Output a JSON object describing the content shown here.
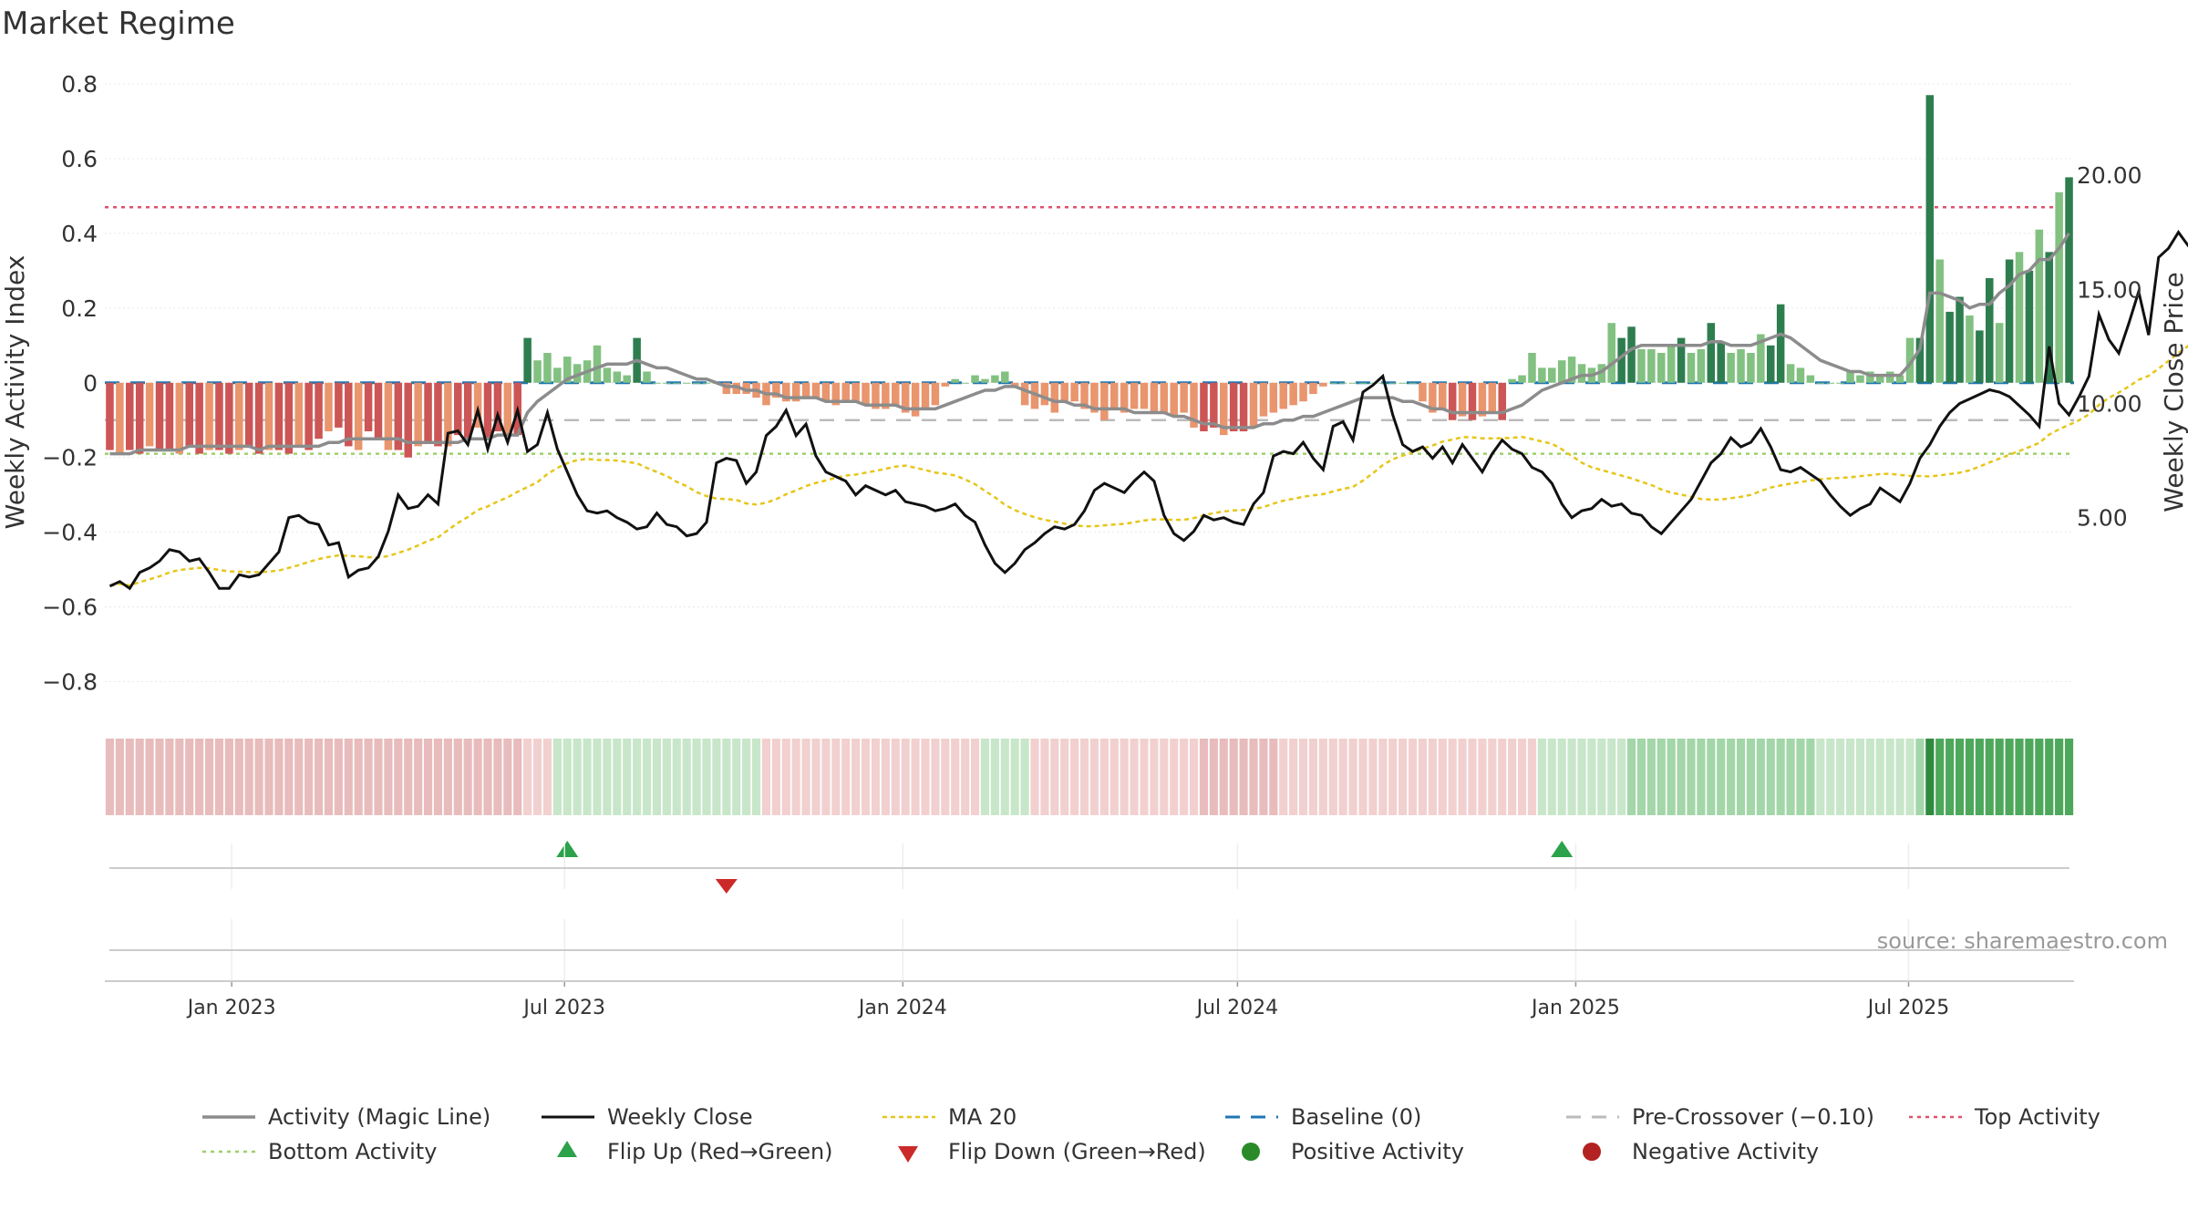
{
  "title": "Market Regime",
  "source": "source: sharemaestro.com",
  "colors": {
    "activity_line": "#8c8c8c",
    "weekly_close": "#111111",
    "ma20": "#e6c619",
    "baseline": "#1f77b4",
    "pre_crossover": "#bbbbbb",
    "top_activity": "#e0506a",
    "bottom_activity": "#9ed06a",
    "pos_dark": "#2e7d4f",
    "pos_light": "#82c181",
    "neg_dark": "#cc5555",
    "neg_light": "#e9956e",
    "flip_up": "#2ca24a",
    "flip_down": "#cc2a2a",
    "pos_dot": "#2a8a2a",
    "neg_dot": "#b22222"
  },
  "chart_data": {
    "type": "bar",
    "title": "Market Regime",
    "ylabel": "Weekly Activity Index",
    "y2label": "Weekly Close Price",
    "ylim": [
      -0.85,
      0.8
    ],
    "yticks": [
      -0.8,
      -0.6,
      -0.4,
      -0.2,
      0,
      0.2,
      0.4,
      0.6,
      0.8
    ],
    "ytick_labels": [
      "−0.8",
      "−0.6",
      "−0.4",
      "−0.2",
      "0",
      "0.2",
      "0.4",
      "0.6",
      "0.8"
    ],
    "y2lim": [
      -3.0,
      24.0
    ],
    "y2ticks": [
      5,
      10,
      15,
      20
    ],
    "y2tick_labels": [
      "5.00",
      "10.00",
      "15.00",
      "20.00"
    ],
    "x_start": "2022-10-24",
    "x_end": "2025-09-29",
    "xticks": [
      "2023-01-01",
      "2023-07-01",
      "2024-01-01",
      "2024-07-01",
      "2025-01-01",
      "2025-07-01"
    ],
    "xtick_labels": [
      "Jan 2023",
      "Jul 2023",
      "Jan 2024",
      "Jul 2024",
      "Jan 2025",
      "Jul 2025"
    ],
    "top_activity": 0.47,
    "bottom_activity": -0.19,
    "pre_crossover": -0.1,
    "baseline": 0,
    "grid": true,
    "legend_position": "bottom",
    "legend": [
      "Activity (Magic Line)",
      "Weekly Close",
      "MA 20",
      "Baseline (0)",
      "Pre-Crossover (−0.10)",
      "Top Activity",
      "Bottom Activity",
      "Flip Up (Red→Green)",
      "Flip Down (Green→Red)",
      "Positive Activity",
      "Negative Activity"
    ],
    "activity_bars": [
      -0.18,
      -0.19,
      -0.18,
      -0.19,
      -0.17,
      -0.18,
      -0.18,
      -0.19,
      -0.17,
      -0.19,
      -0.18,
      -0.18,
      -0.19,
      -0.18,
      -0.17,
      -0.19,
      -0.18,
      -0.18,
      -0.19,
      -0.17,
      -0.18,
      -0.15,
      -0.13,
      -0.12,
      -0.17,
      -0.18,
      -0.13,
      -0.15,
      -0.18,
      -0.18,
      -0.2,
      -0.17,
      -0.16,
      -0.17,
      -0.17,
      -0.14,
      -0.15,
      -0.12,
      -0.15,
      -0.13,
      -0.14,
      -0.14,
      0.12,
      0.06,
      0.08,
      0.04,
      0.07,
      0.05,
      0.06,
      0.1,
      0.04,
      0.03,
      0.02,
      0.12,
      0.03,
      0.0,
      0.0,
      0.0,
      0.0,
      0.0,
      0.0,
      0.0,
      -0.03,
      -0.03,
      -0.03,
      -0.04,
      -0.06,
      -0.04,
      -0.05,
      -0.05,
      -0.04,
      -0.04,
      -0.05,
      -0.06,
      -0.05,
      -0.05,
      -0.06,
      -0.07,
      -0.07,
      -0.06,
      -0.08,
      -0.09,
      -0.07,
      -0.06,
      -0.01,
      0.01,
      0.0,
      0.02,
      0.01,
      0.02,
      0.03,
      -0.01,
      -0.06,
      -0.07,
      -0.06,
      -0.08,
      -0.05,
      -0.05,
      -0.07,
      -0.08,
      -0.1,
      -0.07,
      -0.08,
      -0.07,
      -0.07,
      -0.08,
      -0.08,
      -0.09,
      -0.08,
      -0.12,
      -0.13,
      -0.12,
      -0.14,
      -0.13,
      -0.13,
      -0.12,
      -0.09,
      -0.08,
      -0.07,
      -0.06,
      -0.05,
      -0.03,
      -0.01,
      0.0,
      0.0,
      0.0,
      0.0,
      0.0,
      0.0,
      0.0,
      0.0,
      0.0,
      -0.05,
      -0.08,
      -0.07,
      -0.1,
      -0.09,
      -0.1,
      -0.09,
      -0.08,
      -0.1,
      0.01,
      0.02,
      0.08,
      0.04,
      0.04,
      0.06,
      0.07,
      0.05,
      0.04,
      0.05,
      0.16,
      0.12,
      0.15,
      0.09,
      0.09,
      0.08,
      0.1,
      0.12,
      0.08,
      0.09,
      0.16,
      0.11,
      0.08,
      0.09,
      0.08,
      0.13,
      0.1,
      0.21,
      0.05,
      0.04,
      0.02,
      0.0,
      0.0,
      0.0,
      0.03,
      0.02,
      0.03,
      0.02,
      0.03,
      0.02,
      0.12,
      0.12,
      0.77,
      0.33,
      0.19,
      0.23,
      0.18,
      0.14,
      0.28,
      0.16,
      0.33,
      0.35,
      0.3,
      0.41,
      0.35,
      0.51,
      0.55
    ],
    "activity_line": [
      -0.19,
      -0.19,
      -0.19,
      -0.18,
      -0.18,
      -0.18,
      -0.18,
      -0.18,
      -0.17,
      -0.17,
      -0.17,
      -0.17,
      -0.17,
      -0.17,
      -0.17,
      -0.18,
      -0.17,
      -0.17,
      -0.17,
      -0.17,
      -0.17,
      -0.17,
      -0.16,
      -0.16,
      -0.15,
      -0.15,
      -0.15,
      -0.15,
      -0.15,
      -0.15,
      -0.16,
      -0.16,
      -0.16,
      -0.16,
      -0.16,
      -0.16,
      -0.15,
      -0.15,
      -0.15,
      -0.14,
      -0.14,
      -0.14,
      -0.08,
      -0.05,
      -0.03,
      -0.01,
      0.01,
      0.02,
      0.03,
      0.04,
      0.05,
      0.05,
      0.05,
      0.06,
      0.05,
      0.04,
      0.04,
      0.03,
      0.02,
      0.01,
      0.01,
      0.0,
      -0.01,
      -0.01,
      -0.02,
      -0.02,
      -0.03,
      -0.03,
      -0.04,
      -0.04,
      -0.04,
      -0.04,
      -0.05,
      -0.05,
      -0.05,
      -0.05,
      -0.06,
      -0.06,
      -0.06,
      -0.06,
      -0.07,
      -0.07,
      -0.07,
      -0.07,
      -0.06,
      -0.05,
      -0.04,
      -0.03,
      -0.02,
      -0.02,
      -0.01,
      -0.01,
      -0.02,
      -0.03,
      -0.04,
      -0.05,
      -0.05,
      -0.06,
      -0.06,
      -0.07,
      -0.07,
      -0.07,
      -0.07,
      -0.08,
      -0.08,
      -0.08,
      -0.08,
      -0.09,
      -0.09,
      -0.1,
      -0.11,
      -0.11,
      -0.12,
      -0.12,
      -0.12,
      -0.12,
      -0.11,
      -0.11,
      -0.1,
      -0.1,
      -0.09,
      -0.09,
      -0.08,
      -0.07,
      -0.06,
      -0.05,
      -0.04,
      -0.04,
      -0.04,
      -0.04,
      -0.05,
      -0.05,
      -0.06,
      -0.07,
      -0.07,
      -0.08,
      -0.08,
      -0.08,
      -0.08,
      -0.08,
      -0.08,
      -0.07,
      -0.06,
      -0.04,
      -0.02,
      -0.01,
      0.0,
      0.01,
      0.02,
      0.02,
      0.03,
      0.05,
      0.07,
      0.09,
      0.1,
      0.1,
      0.1,
      0.1,
      0.1,
      0.1,
      0.1,
      0.11,
      0.11,
      0.1,
      0.1,
      0.1,
      0.11,
      0.12,
      0.13,
      0.12,
      0.1,
      0.08,
      0.06,
      0.05,
      0.04,
      0.03,
      0.03,
      0.02,
      0.02,
      0.02,
      0.02,
      0.05,
      0.09,
      0.24,
      0.24,
      0.23,
      0.22,
      0.2,
      0.21,
      0.21,
      0.24,
      0.26,
      0.29,
      0.3,
      0.33,
      0.33,
      0.36,
      0.4
    ],
    "weekly_close": [
      2.0,
      2.2,
      1.9,
      2.6,
      2.8,
      3.1,
      3.6,
      3.5,
      3.1,
      3.2,
      2.6,
      1.9,
      1.9,
      2.5,
      2.4,
      2.5,
      3.0,
      3.5,
      5.0,
      5.1,
      4.8,
      4.7,
      3.8,
      3.9,
      2.4,
      2.7,
      2.8,
      3.3,
      4.4,
      6.0,
      5.4,
      5.5,
      6.0,
      5.6,
      8.7,
      8.8,
      8.2,
      9.7,
      8.0,
      9.5,
      8.3,
      9.7,
      7.9,
      8.2,
      9.6,
      8.0,
      7.0,
      6.0,
      5.3,
      5.2,
      5.3,
      5.0,
      4.8,
      4.5,
      4.6,
      5.2,
      4.7,
      4.6,
      4.2,
      4.3,
      4.8,
      7.4,
      7.6,
      7.5,
      6.5,
      7.0,
      8.6,
      9.0,
      9.7,
      8.6,
      9.1,
      7.7,
      7.0,
      6.8,
      6.6,
      6.0,
      6.4,
      6.2,
      6.0,
      6.2,
      5.7,
      5.6,
      5.5,
      5.3,
      5.4,
      5.6,
      5.1,
      4.8,
      3.8,
      3.0,
      2.6,
      3.0,
      3.6,
      3.9,
      4.3,
      4.6,
      4.5,
      4.7,
      5.3,
      6.2,
      6.5,
      6.3,
      6.1,
      6.6,
      7.0,
      6.6,
      5.1,
      4.3,
      4.0,
      4.4,
      5.1,
      4.9,
      5.0,
      4.8,
      4.7,
      5.6,
      6.1,
      7.7,
      7.9,
      7.8,
      8.3,
      7.6,
      7.1,
      9.0,
      9.2,
      8.4,
      10.5,
      10.8,
      11.2,
      9.5,
      8.2,
      7.9,
      8.1,
      7.6,
      8.1,
      7.4,
      8.2,
      7.6,
      7.0,
      7.8,
      8.4,
      8.0,
      7.8,
      7.2,
      7.0,
      6.5,
      5.6,
      5.0,
      5.3,
      5.4,
      5.8,
      5.5,
      5.6,
      5.2,
      5.1,
      4.6,
      4.3,
      4.8,
      5.3,
      5.8,
      6.6,
      7.4,
      7.8,
      8.5,
      8.1,
      8.3,
      8.9,
      8.1,
      7.1,
      7.0,
      7.2,
      6.9,
      6.6,
      6.0,
      5.5,
      5.1,
      5.4,
      5.6,
      6.3,
      6.0,
      5.7,
      6.5,
      7.6,
      8.2,
      9.0,
      9.6,
      10.0,
      10.2,
      10.4,
      10.6,
      10.5,
      10.3,
      9.9,
      9.5,
      9.0,
      12.5,
      10.0,
      9.5,
      10.3,
      11.2,
      13.9,
      12.8,
      12.2,
      13.5,
      14.9,
      13.0,
      16.4,
      16.8,
      17.5,
      16.9,
      16.5,
      14.7,
      18.6,
      20.5
    ]
  }
}
